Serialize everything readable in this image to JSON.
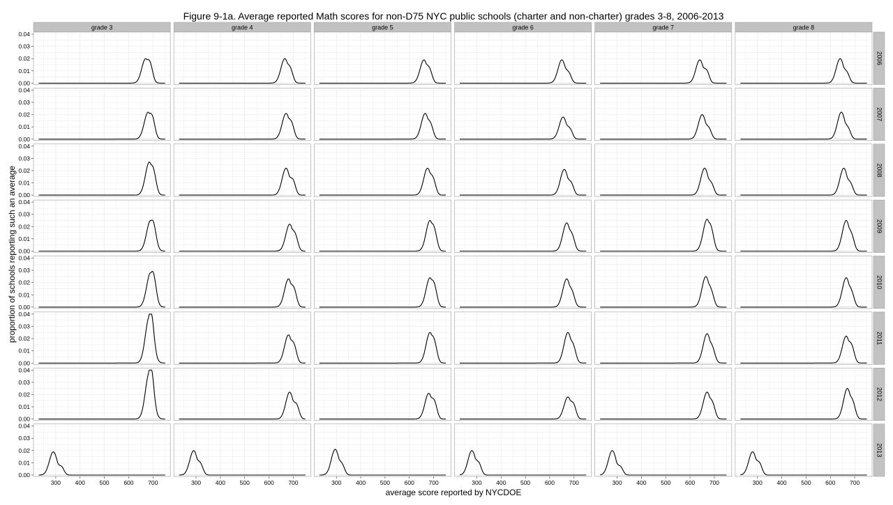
{
  "chart_data": {
    "type": "line",
    "title": "Figure 9-1a. Average reported Math scores for non-D75 NYC public schools (charter and non-charter) grades 3-8, 2006-2013",
    "xlabel": "average score reported by NYCDOE",
    "ylabel": "proportion of schools reporting such an average",
    "columns": [
      "grade 3",
      "grade 4",
      "grade 5",
      "grade 6",
      "grade 7",
      "grade 8"
    ],
    "rows": [
      "2006",
      "2007",
      "2008",
      "2009",
      "2010",
      "2011",
      "2012",
      "2013"
    ],
    "xlim": [
      220,
      760
    ],
    "ylim": [
      0,
      0.04
    ],
    "x_ticks": [
      300,
      400,
      500,
      600,
      700
    ],
    "y_ticks": [
      "0.00",
      "0.01",
      "0.02",
      "0.03",
      "0.04"
    ],
    "grid": true,
    "line_color": "#000000",
    "peaks": [
      [
        {
          "center": 670,
          "peak": 0.02,
          "shoulder": 690,
          "shoulder_height": 0.016
        },
        {
          "center": 665,
          "peak": 0.02,
          "shoulder": 690,
          "shoulder_height": 0.013
        },
        {
          "center": 660,
          "peak": 0.019,
          "shoulder": 685,
          "shoulder_height": 0.013
        },
        {
          "center": 650,
          "peak": 0.019,
          "shoulder": 680,
          "shoulder_height": 0.011
        },
        {
          "center": 640,
          "peak": 0.019,
          "shoulder": 670,
          "shoulder_height": 0.014
        },
        {
          "center": 640,
          "peak": 0.02,
          "shoulder": 670,
          "shoulder_height": 0.011
        }
      ],
      [
        {
          "center": 680,
          "peak": 0.022,
          "shoulder": 700,
          "shoulder_height": 0.017
        },
        {
          "center": 670,
          "peak": 0.021,
          "shoulder": 695,
          "shoulder_height": 0.015
        },
        {
          "center": 665,
          "peak": 0.021,
          "shoulder": 690,
          "shoulder_height": 0.013
        },
        {
          "center": 655,
          "peak": 0.018,
          "shoulder": 685,
          "shoulder_height": 0.011
        },
        {
          "center": 650,
          "peak": 0.02,
          "shoulder": 680,
          "shoulder_height": 0.011
        },
        {
          "center": 645,
          "peak": 0.022,
          "shoulder": 675,
          "shoulder_height": 0.011
        }
      ],
      [
        {
          "center": 685,
          "peak": 0.027,
          "shoulder": 705,
          "shoulder_height": 0.017
        },
        {
          "center": 670,
          "peak": 0.022,
          "shoulder": 700,
          "shoulder_height": 0.017
        },
        {
          "center": 675,
          "peak": 0.022,
          "shoulder": 700,
          "shoulder_height": 0.015
        },
        {
          "center": 660,
          "peak": 0.021,
          "shoulder": 690,
          "shoulder_height": 0.013
        },
        {
          "center": 660,
          "peak": 0.022,
          "shoulder": 690,
          "shoulder_height": 0.012
        },
        {
          "center": 655,
          "peak": 0.022,
          "shoulder": 685,
          "shoulder_height": 0.012
        }
      ],
      [
        {
          "center": 690,
          "peak": 0.025,
          "shoulder": 705,
          "shoulder_height": 0.015
        },
        {
          "center": 685,
          "peak": 0.022,
          "shoulder": 710,
          "shoulder_height": 0.015
        },
        {
          "center": 685,
          "peak": 0.025,
          "shoulder": 705,
          "shoulder_height": 0.015
        },
        {
          "center": 670,
          "peak": 0.023,
          "shoulder": 695,
          "shoulder_height": 0.013
        },
        {
          "center": 670,
          "peak": 0.026,
          "shoulder": 690,
          "shoulder_height": 0.015
        },
        {
          "center": 665,
          "peak": 0.025,
          "shoulder": 690,
          "shoulder_height": 0.013
        }
      ],
      [
        {
          "center": 690,
          "peak": 0.028,
          "shoulder": 705,
          "shoulder_height": 0.019
        },
        {
          "center": 680,
          "peak": 0.023,
          "shoulder": 705,
          "shoulder_height": 0.017
        },
        {
          "center": 685,
          "peak": 0.024,
          "shoulder": 705,
          "shoulder_height": 0.016
        },
        {
          "center": 670,
          "peak": 0.023,
          "shoulder": 695,
          "shoulder_height": 0.012
        },
        {
          "center": 665,
          "peak": 0.025,
          "shoulder": 690,
          "shoulder_height": 0.013
        },
        {
          "center": 665,
          "peak": 0.024,
          "shoulder": 690,
          "shoulder_height": 0.012
        }
      ],
      [
        {
          "center": 685,
          "peak": 0.038,
          "shoulder": 695,
          "shoulder_height": 0.024
        },
        {
          "center": 680,
          "peak": 0.023,
          "shoulder": 705,
          "shoulder_height": 0.017
        },
        {
          "center": 685,
          "peak": 0.025,
          "shoulder": 705,
          "shoulder_height": 0.015
        },
        {
          "center": 675,
          "peak": 0.025,
          "shoulder": 700,
          "shoulder_height": 0.014
        },
        {
          "center": 670,
          "peak": 0.024,
          "shoulder": 695,
          "shoulder_height": 0.012
        },
        {
          "center": 665,
          "peak": 0.022,
          "shoulder": 690,
          "shoulder_height": 0.016
        }
      ],
      [
        {
          "center": 685,
          "peak": 0.038,
          "shoulder": 695,
          "shoulder_height": 0.025
        },
        {
          "center": 685,
          "peak": 0.022,
          "shoulder": 715,
          "shoulder_height": 0.016
        },
        {
          "center": 680,
          "peak": 0.021,
          "shoulder": 705,
          "shoulder_height": 0.017
        },
        {
          "center": 675,
          "peak": 0.018,
          "shoulder": 700,
          "shoulder_height": 0.014
        },
        {
          "center": 670,
          "peak": 0.022,
          "shoulder": 695,
          "shoulder_height": 0.014
        },
        {
          "center": 670,
          "peak": 0.025,
          "shoulder": 695,
          "shoulder_height": 0.014
        }
      ],
      [
        {
          "center": 290,
          "peak": 0.019,
          "shoulder": 325,
          "shoulder_height": 0.01
        },
        {
          "center": 290,
          "peak": 0.02,
          "shoulder": 320,
          "shoulder_height": 0.012
        },
        {
          "center": 295,
          "peak": 0.021,
          "shoulder": 325,
          "shoulder_height": 0.011
        },
        {
          "center": 280,
          "peak": 0.02,
          "shoulder": 310,
          "shoulder_height": 0.013
        },
        {
          "center": 280,
          "peak": 0.02,
          "shoulder": 315,
          "shoulder_height": 0.01
        },
        {
          "center": 280,
          "peak": 0.019,
          "shoulder": 310,
          "shoulder_height": 0.013
        }
      ]
    ]
  }
}
